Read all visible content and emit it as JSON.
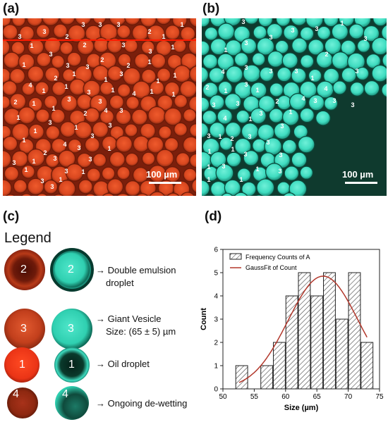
{
  "panels": {
    "a": "(a)",
    "b": "(b)",
    "c": "(c)",
    "d": "(d)"
  },
  "scale_bar_label": "100 µm",
  "colors": {
    "red_bg": "#7a1f0c",
    "red_droplet": "#d8471f",
    "cyan_bg": "#0f3a2e",
    "cyan_droplet": "#3fdcc0",
    "chart_fit": "#b2372b"
  },
  "legend": {
    "title": "Legend",
    "rows": [
      {
        "num": "2",
        "arrow": "→",
        "lines": [
          "Double emulsion",
          "droplet"
        ]
      },
      {
        "num": "3",
        "arrow": "→",
        "lines": [
          "Giant Vesicle",
          "Size: (65 ± 5) µm"
        ]
      },
      {
        "num": "1",
        "arrow": "→",
        "lines": [
          "Oil droplet"
        ]
      },
      {
        "num": "4",
        "arrow": "→",
        "lines": [
          "Ongoing de-wetting"
        ]
      }
    ]
  },
  "chart_data": {
    "type": "bar",
    "xlabel": "Size (µm)",
    "ylabel": "Count",
    "xlim": [
      50,
      75
    ],
    "ylim": [
      0,
      6
    ],
    "xticks": [
      50,
      55,
      60,
      65,
      70,
      75
    ],
    "yticks": [
      0,
      1,
      2,
      3,
      4,
      5,
      6
    ],
    "bin_width": 2,
    "bin_centers": [
      53,
      57,
      59,
      61,
      63,
      65,
      67,
      69,
      71,
      73
    ],
    "counts": [
      1,
      1,
      2,
      4,
      5,
      4,
      5,
      3,
      5,
      2
    ],
    "legend": [
      "Frequency Counts of A",
      "GaussFit of Count"
    ],
    "gauss_fit": {
      "amplitude": 4.85,
      "mean": 66,
      "sigma": 5.6
    }
  },
  "micrograph_a_labels": [
    {
      "t": "3",
      "x": 28,
      "y": 55
    },
    {
      "t": "2",
      "x": 95,
      "y": 55
    },
    {
      "t": "3",
      "x": 118,
      "y": 38
    },
    {
      "t": "3",
      "x": 142,
      "y": 38
    },
    {
      "t": "3",
      "x": 168,
      "y": 38
    },
    {
      "t": "2",
      "x": 212,
      "y": 48
    },
    {
      "t": "1",
      "x": 258,
      "y": 38
    },
    {
      "t": "3",
      "x": 63,
      "y": 48
    },
    {
      "t": "1",
      "x": 232,
      "y": 55
    },
    {
      "t": "1",
      "x": 45,
      "y": 68
    },
    {
      "t": "2",
      "x": 120,
      "y": 67
    },
    {
      "t": "3",
      "x": 175,
      "y": 67
    },
    {
      "t": "1",
      "x": 245,
      "y": 70
    },
    {
      "t": "3",
      "x": 213,
      "y": 76
    },
    {
      "t": "3",
      "x": 72,
      "y": 80
    },
    {
      "t": "2",
      "x": 145,
      "y": 88
    },
    {
      "t": "3",
      "x": 96,
      "y": 96
    },
    {
      "t": "1",
      "x": 34,
      "y": 95
    },
    {
      "t": "1",
      "x": 212,
      "y": 91
    },
    {
      "t": "2",
      "x": 182,
      "y": 96
    },
    {
      "t": "3",
      "x": 124,
      "y": 98
    },
    {
      "t": "1",
      "x": 105,
      "y": 108
    },
    {
      "t": "2",
      "x": 79,
      "y": 114
    },
    {
      "t": "4",
      "x": 43,
      "y": 124
    },
    {
      "t": "1",
      "x": 150,
      "y": 116
    },
    {
      "t": "3",
      "x": 172,
      "y": 108
    },
    {
      "t": "1",
      "x": 224,
      "y": 118
    },
    {
      "t": "1",
      "x": 248,
      "y": 110
    },
    {
      "t": "1",
      "x": 94,
      "y": 126
    },
    {
      "t": "1",
      "x": 62,
      "y": 132
    },
    {
      "t": "3",
      "x": 126,
      "y": 134
    },
    {
      "t": "1",
      "x": 160,
      "y": 131
    },
    {
      "t": "4",
      "x": 190,
      "y": 136
    },
    {
      "t": "1",
      "x": 215,
      "y": 133
    },
    {
      "t": "2",
      "x": 22,
      "y": 148
    },
    {
      "t": "1",
      "x": 48,
      "y": 150
    },
    {
      "t": "3",
      "x": 98,
      "y": 144
    },
    {
      "t": "3",
      "x": 142,
      "y": 147
    },
    {
      "t": "1",
      "x": 246,
      "y": 137
    },
    {
      "t": "1",
      "x": 76,
      "y": 157
    },
    {
      "t": "2",
      "x": 121,
      "y": 164
    },
    {
      "t": "4",
      "x": 150,
      "y": 160
    },
    {
      "t": "3",
      "x": 172,
      "y": 160
    },
    {
      "t": "1",
      "x": 26,
      "y": 170
    },
    {
      "t": "3",
      "x": 71,
      "y": 177
    },
    {
      "t": "1",
      "x": 108,
      "y": 184
    },
    {
      "t": "3",
      "x": 156,
      "y": 181
    },
    {
      "t": "1",
      "x": 50,
      "y": 189
    },
    {
      "t": "3",
      "x": 131,
      "y": 196
    },
    {
      "t": "4",
      "x": 92,
      "y": 208
    },
    {
      "t": "1",
      "x": 34,
      "y": 202
    },
    {
      "t": "3",
      "x": 112,
      "y": 213
    },
    {
      "t": "2",
      "x": 64,
      "y": 220
    },
    {
      "t": "1",
      "x": 155,
      "y": 214
    },
    {
      "t": "3",
      "x": 78,
      "y": 228
    },
    {
      "t": "3",
      "x": 128,
      "y": 229
    },
    {
      "t": "3",
      "x": 20,
      "y": 234
    },
    {
      "t": "1",
      "x": 48,
      "y": 232
    },
    {
      "t": "1",
      "x": 37,
      "y": 244
    },
    {
      "t": "3",
      "x": 94,
      "y": 246
    },
    {
      "t": "1",
      "x": 118,
      "y": 247
    },
    {
      "t": "3",
      "x": 60,
      "y": 260
    },
    {
      "t": "1",
      "x": 86,
      "y": 258
    },
    {
      "t": "3",
      "x": 74,
      "y": 268
    }
  ],
  "micrograph_b_labels": [
    {
      "t": "3",
      "x": 345,
      "y": 34
    },
    {
      "t": "1",
      "x": 485,
      "y": 36
    },
    {
      "t": "3",
      "x": 384,
      "y": 56
    },
    {
      "t": "3",
      "x": 415,
      "y": 46
    },
    {
      "t": "3",
      "x": 449,
      "y": 44
    },
    {
      "t": "3",
      "x": 518,
      "y": 58
    },
    {
      "t": "1",
      "x": 320,
      "y": 74
    },
    {
      "t": "3",
      "x": 349,
      "y": 64
    },
    {
      "t": "2",
      "x": 463,
      "y": 80
    },
    {
      "t": "3",
      "x": 349,
      "y": 99
    },
    {
      "t": "4",
      "x": 316,
      "y": 105
    },
    {
      "t": "3",
      "x": 384,
      "y": 104
    },
    {
      "t": "3",
      "x": 420,
      "y": 104
    },
    {
      "t": "3",
      "x": 506,
      "y": 104
    },
    {
      "t": "1",
      "x": 443,
      "y": 114
    },
    {
      "t": "2",
      "x": 294,
      "y": 127
    },
    {
      "t": "1",
      "x": 320,
      "y": 132
    },
    {
      "t": "3",
      "x": 349,
      "y": 123
    },
    {
      "t": "1",
      "x": 365,
      "y": 131
    },
    {
      "t": "4",
      "x": 462,
      "y": 129
    },
    {
      "t": "3",
      "x": 474,
      "y": 146
    },
    {
      "t": "4",
      "x": 430,
      "y": 143
    },
    {
      "t": "3",
      "x": 447,
      "y": 146
    },
    {
      "t": "3",
      "x": 500,
      "y": 152
    },
    {
      "t": "3",
      "x": 337,
      "y": 150
    },
    {
      "t": "2",
      "x": 393,
      "y": 147
    },
    {
      "t": "1",
      "x": 412,
      "y": 162
    },
    {
      "t": "3",
      "x": 303,
      "y": 152
    },
    {
      "t": "4",
      "x": 319,
      "y": 171
    },
    {
      "t": "1",
      "x": 355,
      "y": 172
    },
    {
      "t": "3",
      "x": 370,
      "y": 164
    },
    {
      "t": "3",
      "x": 400,
      "y": 182
    },
    {
      "t": "3",
      "x": 296,
      "y": 196
    },
    {
      "t": "1",
      "x": 312,
      "y": 197
    },
    {
      "t": "2",
      "x": 329,
      "y": 200
    },
    {
      "t": "3",
      "x": 354,
      "y": 197
    },
    {
      "t": "3",
      "x": 380,
      "y": 205
    },
    {
      "t": "1",
      "x": 297,
      "y": 218
    },
    {
      "t": "1",
      "x": 330,
      "y": 215
    },
    {
      "t": "3",
      "x": 348,
      "y": 222
    },
    {
      "t": "3",
      "x": 398,
      "y": 223
    },
    {
      "t": "1",
      "x": 296,
      "y": 240
    },
    {
      "t": "3",
      "x": 317,
      "y": 239
    },
    {
      "t": "1",
      "x": 365,
      "y": 243
    },
    {
      "t": "3",
      "x": 397,
      "y": 246
    },
    {
      "t": "1",
      "x": 296,
      "y": 258
    },
    {
      "t": "1",
      "x": 342,
      "y": 258
    }
  ]
}
